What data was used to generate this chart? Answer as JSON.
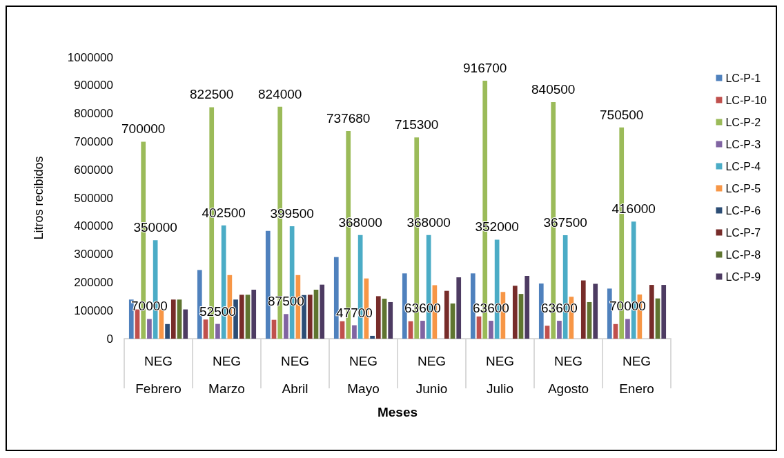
{
  "chart_data": {
    "type": "bar",
    "xlabel": "Meses",
    "ylabel": "Litros recibidos",
    "categories": [
      "NEG\nFebrero",
      "NEG\nMarzo",
      "NEG\nAbril",
      "NEG\nMayo",
      "NEG\nJunio",
      "NEG\nJulio",
      "NEG\nAgosto",
      "NEG\nEnero"
    ],
    "series": [
      {
        "name": "LC-P-1",
        "color": "#4f81bd",
        "values": [
          139000,
          244000,
          383000,
          290000,
          232000,
          232000,
          196000,
          178000
        ]
      },
      {
        "name": "LC-P-10",
        "color": "#c0504d",
        "values": [
          104000,
          68000,
          67000,
          62000,
          62000,
          79000,
          46000,
          52000
        ]
      },
      {
        "name": "LC-P-2",
        "color": "#9bbb59",
        "values": [
          700000,
          822500,
          824000,
          737680,
          715300,
          916700,
          840500,
          750500
        ],
        "value_labels": [
          "700000",
          "822500",
          "824000",
          "737680",
          "715300",
          "916700",
          "840500",
          "750500"
        ]
      },
      {
        "name": "LC-P-3",
        "color": "#8064a2",
        "values": [
          70000,
          52500,
          87500,
          47700,
          63600,
          63600,
          63600,
          70000
        ],
        "value_labels": [
          "70000",
          "52500",
          "87500",
          "47700",
          "63600",
          "63600",
          "63600",
          "70000"
        ]
      },
      {
        "name": "LC-P-4",
        "color": "#4bacc6",
        "values": [
          350000,
          402500,
          399500,
          368000,
          368000,
          352000,
          367500,
          416000
        ],
        "value_labels": [
          "350000",
          "402500",
          "399500",
          "368000",
          "368000",
          "352000",
          "367500",
          "416000"
        ]
      },
      {
        "name": "LC-P-5",
        "color": "#f79646",
        "values": [
          104000,
          226000,
          226000,
          214000,
          190000,
          166000,
          149000,
          157000
        ]
      },
      {
        "name": "LC-P-6",
        "color": "#2c4d75",
        "values": [
          52000,
          139000,
          155000,
          10000,
          null,
          null,
          null,
          null
        ]
      },
      {
        "name": "LC-P-7",
        "color": "#772c2a",
        "values": [
          139000,
          156000,
          156000,
          151000,
          170000,
          188000,
          207000,
          191000
        ]
      },
      {
        "name": "LC-P-8",
        "color": "#5f7530",
        "values": [
          139000,
          156000,
          174000,
          142000,
          125000,
          159000,
          130000,
          143000
        ]
      },
      {
        "name": "LC-P-9",
        "color": "#4d3b62",
        "values": [
          104000,
          174000,
          192000,
          130000,
          218000,
          223000,
          195000,
          191000
        ]
      }
    ],
    "ylim": [
      0,
      1000000
    ],
    "yticks": [
      0,
      100000,
      200000,
      300000,
      400000,
      500000,
      600000,
      700000,
      800000,
      900000,
      1000000
    ],
    "grid": false,
    "legend": "right"
  }
}
